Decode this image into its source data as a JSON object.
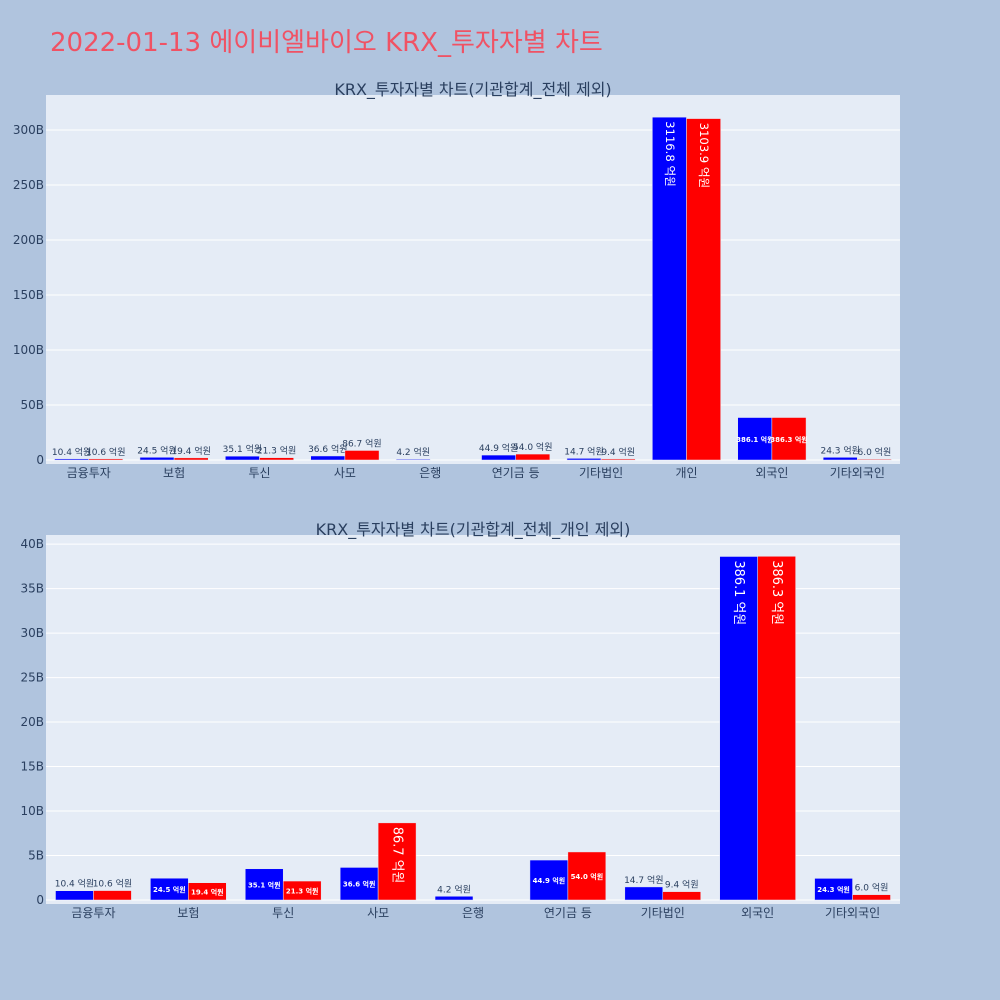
{
  "page": {
    "title": "2022-01-13 에이비엘바이오 KRX_투자자별 차트"
  },
  "chart_data": [
    {
      "type": "bar",
      "title": "KRX_투자자별 차트(기관합계_전체 제외)",
      "categories": [
        "금융투자",
        "보험",
        "투신",
        "사모",
        "은행",
        "연기금 등",
        "기타법인",
        "개인",
        "외국인",
        "기타외국인"
      ],
      "series": [
        {
          "color": "#0000ff",
          "values": [
            1.04,
            2.45,
            3.51,
            3.66,
            0.42,
            4.49,
            1.47,
            311.68,
            38.61,
            2.43
          ],
          "labels": [
            "10.4 억원",
            "24.5 억원",
            "35.1 억원",
            "36.6 억원",
            "4.2 억원",
            "44.9 억원",
            "14.7 억원",
            "3116.8 억원",
            "386.1 억원",
            "24.3 억원"
          ]
        },
        {
          "color": "#ff0000",
          "values": [
            1.06,
            1.94,
            2.13,
            8.67,
            null,
            5.4,
            0.94,
            310.39,
            38.63,
            0.6
          ],
          "labels": [
            "10.6 억원",
            "19.4 억원",
            "21.3 억원",
            "86.7 억원",
            "",
            "54.0 억원",
            "9.4 억원",
            "3103.9 억원",
            "386.3 억원",
            "6.0 억원"
          ]
        }
      ],
      "yticks": [
        0,
        50,
        100,
        150,
        200,
        250,
        300
      ],
      "ytick_labels": [
        "0",
        "50B",
        "100B",
        "150B",
        "200B",
        "250B",
        "300B"
      ],
      "ylim": [
        0,
        330
      ],
      "grid": true
    },
    {
      "type": "bar",
      "title": "KRX_투자자별 차트(기관합계_전체_개인 제외)",
      "categories": [
        "금융투자",
        "보험",
        "투신",
        "사모",
        "은행",
        "연기금 등",
        "기타법인",
        "외국인",
        "기타외국인"
      ],
      "series": [
        {
          "color": "#0000ff",
          "values": [
            1.04,
            2.45,
            3.51,
            3.66,
            0.42,
            4.49,
            1.47,
            38.61,
            2.43
          ],
          "labels": [
            "10.4 억원",
            "24.5 억원",
            "35.1 억원",
            "36.6 억원",
            "4.2 억원",
            "44.9 억원",
            "14.7 억원",
            "386.1 억원",
            "24.3 억원"
          ]
        },
        {
          "color": "#ff0000",
          "values": [
            1.06,
            1.94,
            2.13,
            8.67,
            null,
            5.4,
            0.94,
            38.63,
            0.6
          ],
          "labels": [
            "10.6 억원",
            "19.4 억원",
            "21.3 억원",
            "86.7 억원",
            "",
            "54.0 억원",
            "9.4 억원",
            "386.3 억원",
            "6.0 억원"
          ]
        }
      ],
      "yticks": [
        0,
        5,
        10,
        15,
        20,
        25,
        30,
        35,
        40
      ],
      "ytick_labels": [
        "0",
        "5B",
        "10B",
        "15B",
        "20B",
        "25B",
        "30B",
        "35B",
        "40B"
      ],
      "ylim": [
        0,
        40.8
      ],
      "grid": true
    }
  ]
}
